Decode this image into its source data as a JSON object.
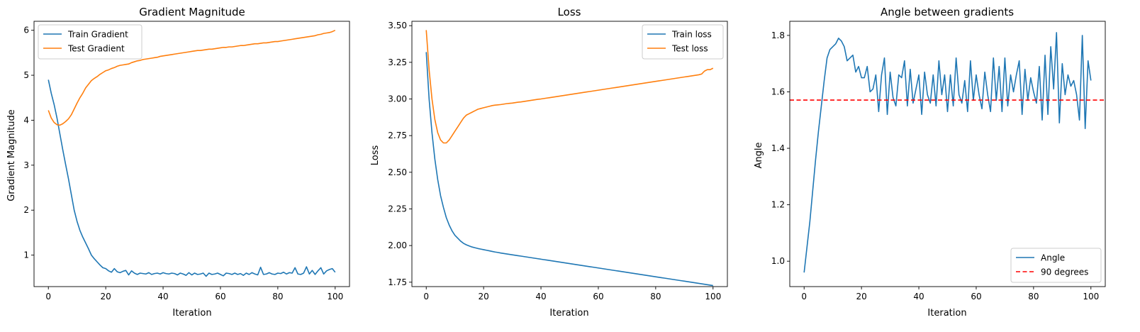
{
  "colors": {
    "train": "#1f77b4",
    "test": "#ff7f0e",
    "reference": "#ff0000"
  },
  "chart_data": [
    {
      "type": "line",
      "title": "Gradient Magnitude",
      "xlabel": "Iteration",
      "ylabel": "Gradient Magnitude",
      "xlim": [
        -5,
        105
      ],
      "ylim": [
        0.3,
        6.2
      ],
      "xticks": [
        0,
        20,
        40,
        60,
        80,
        100
      ],
      "yticks": [
        1,
        2,
        3,
        4,
        5,
        6
      ],
      "grid": false,
      "legend_position": "upper left",
      "series": [
        {
          "name": "Train Gradient",
          "color": "#1f77b4",
          "x": [
            0,
            1,
            2,
            3,
            4,
            5,
            6,
            7,
            8,
            9,
            10,
            11,
            12,
            13,
            14,
            15,
            16,
            17,
            18,
            19,
            20,
            21,
            22,
            23,
            24,
            25,
            26,
            27,
            28,
            29,
            30,
            31,
            32,
            33,
            34,
            35,
            36,
            37,
            38,
            39,
            40,
            41,
            42,
            43,
            44,
            45,
            46,
            47,
            48,
            49,
            50,
            51,
            52,
            53,
            54,
            55,
            56,
            57,
            58,
            59,
            60,
            61,
            62,
            63,
            64,
            65,
            66,
            67,
            68,
            69,
            70,
            71,
            72,
            73,
            74,
            75,
            76,
            77,
            78,
            79,
            80,
            81,
            82,
            83,
            84,
            85,
            86,
            87,
            88,
            89,
            90,
            91,
            92,
            93,
            94,
            95,
            96,
            97,
            98,
            99,
            100
          ],
          "y": [
            4.9,
            4.6,
            4.35,
            4.05,
            3.7,
            3.35,
            3.02,
            2.7,
            2.35,
            2.0,
            1.75,
            1.55,
            1.4,
            1.27,
            1.14,
            1.0,
            0.92,
            0.85,
            0.78,
            0.72,
            0.7,
            0.65,
            0.62,
            0.7,
            0.63,
            0.61,
            0.64,
            0.66,
            0.56,
            0.65,
            0.6,
            0.57,
            0.6,
            0.59,
            0.58,
            0.61,
            0.57,
            0.59,
            0.6,
            0.58,
            0.61,
            0.59,
            0.58,
            0.6,
            0.59,
            0.56,
            0.6,
            0.58,
            0.55,
            0.61,
            0.56,
            0.6,
            0.57,
            0.58,
            0.6,
            0.53,
            0.6,
            0.57,
            0.58,
            0.6,
            0.57,
            0.54,
            0.6,
            0.59,
            0.57,
            0.6,
            0.57,
            0.59,
            0.55,
            0.6,
            0.57,
            0.61,
            0.58,
            0.56,
            0.73,
            0.57,
            0.58,
            0.61,
            0.58,
            0.57,
            0.6,
            0.59,
            0.62,
            0.58,
            0.61,
            0.6,
            0.72,
            0.58,
            0.57,
            0.6,
            0.74,
            0.58,
            0.66,
            0.57,
            0.65,
            0.72,
            0.58,
            0.65,
            0.68,
            0.7,
            0.62
          ]
        },
        {
          "name": "Test Gradient",
          "color": "#ff7f0e",
          "x": [
            0,
            1,
            2,
            3,
            4,
            5,
            6,
            7,
            8,
            9,
            10,
            11,
            12,
            13,
            14,
            15,
            16,
            17,
            18,
            19,
            20,
            21,
            22,
            23,
            24,
            25,
            26,
            27,
            28,
            29,
            30,
            31,
            32,
            33,
            34,
            35,
            36,
            37,
            38,
            39,
            40,
            41,
            42,
            43,
            44,
            45,
            46,
            47,
            48,
            49,
            50,
            51,
            52,
            53,
            54,
            55,
            56,
            57,
            58,
            59,
            60,
            61,
            62,
            63,
            64,
            65,
            66,
            67,
            68,
            69,
            70,
            71,
            72,
            73,
            74,
            75,
            76,
            77,
            78,
            79,
            80,
            81,
            82,
            83,
            84,
            85,
            86,
            87,
            88,
            89,
            90,
            91,
            92,
            93,
            94,
            95,
            96,
            97,
            98,
            99,
            100
          ],
          "y": [
            4.22,
            4.05,
            3.95,
            3.9,
            3.89,
            3.92,
            3.97,
            4.03,
            4.12,
            4.25,
            4.38,
            4.5,
            4.6,
            4.72,
            4.8,
            4.88,
            4.93,
            4.97,
            5.02,
            5.06,
            5.1,
            5.12,
            5.15,
            5.17,
            5.2,
            5.22,
            5.23,
            5.24,
            5.25,
            5.28,
            5.3,
            5.32,
            5.33,
            5.35,
            5.36,
            5.37,
            5.38,
            5.39,
            5.4,
            5.42,
            5.43,
            5.44,
            5.45,
            5.46,
            5.47,
            5.48,
            5.49,
            5.5,
            5.51,
            5.52,
            5.53,
            5.54,
            5.55,
            5.55,
            5.56,
            5.57,
            5.58,
            5.58,
            5.59,
            5.6,
            5.61,
            5.62,
            5.62,
            5.63,
            5.63,
            5.64,
            5.65,
            5.66,
            5.66,
            5.67,
            5.68,
            5.69,
            5.7,
            5.7,
            5.71,
            5.72,
            5.72,
            5.73,
            5.74,
            5.75,
            5.75,
            5.76,
            5.77,
            5.78,
            5.79,
            5.8,
            5.81,
            5.82,
            5.83,
            5.84,
            5.85,
            5.86,
            5.87,
            5.88,
            5.9,
            5.91,
            5.93,
            5.94,
            5.95,
            5.97,
            6.0
          ]
        }
      ]
    },
    {
      "type": "line",
      "title": "Loss",
      "xlabel": "Iteration",
      "ylabel": "Loss",
      "xlim": [
        -5,
        105
      ],
      "ylim": [
        1.72,
        3.53
      ],
      "xticks": [
        0,
        20,
        40,
        60,
        80,
        100
      ],
      "yticks": [
        1.75,
        2.0,
        2.25,
        2.5,
        2.75,
        3.0,
        3.25,
        3.5
      ],
      "ytick_labels": [
        "1.75",
        "2.00",
        "2.25",
        "2.50",
        "2.75",
        "3.00",
        "3.25",
        "3.50"
      ],
      "grid": false,
      "legend_position": "upper right",
      "series": [
        {
          "name": "Train loss",
          "color": "#1f77b4",
          "x": [
            0,
            1,
            2,
            3,
            4,
            5,
            6,
            7,
            8,
            9,
            10,
            11,
            12,
            13,
            14,
            15,
            16,
            17,
            18,
            19,
            20,
            21,
            22,
            23,
            24,
            25,
            26,
            27,
            28,
            29,
            30,
            31,
            32,
            33,
            34,
            35,
            36,
            37,
            38,
            39,
            40,
            41,
            42,
            43,
            44,
            45,
            46,
            47,
            48,
            49,
            50,
            51,
            52,
            53,
            54,
            55,
            56,
            57,
            58,
            59,
            60,
            61,
            62,
            63,
            64,
            65,
            66,
            67,
            68,
            69,
            70,
            71,
            72,
            73,
            74,
            75,
            76,
            77,
            78,
            79,
            80,
            81,
            82,
            83,
            84,
            85,
            86,
            87,
            88,
            89,
            90,
            91,
            92,
            93,
            94,
            95,
            96,
            97,
            98,
            99,
            100
          ],
          "y": [
            3.32,
            3.0,
            2.77,
            2.59,
            2.45,
            2.34,
            2.26,
            2.19,
            2.14,
            2.1,
            2.07,
            2.05,
            2.03,
            2.015,
            2.005,
            1.997,
            1.99,
            1.985,
            1.98,
            1.976,
            1.972,
            1.968,
            1.964,
            1.96,
            1.956,
            1.953,
            1.949,
            1.946,
            1.943,
            1.94,
            1.937,
            1.934,
            1.931,
            1.928,
            1.925,
            1.922,
            1.919,
            1.916,
            1.913,
            1.91,
            1.907,
            1.904,
            1.901,
            1.898,
            1.895,
            1.892,
            1.889,
            1.886,
            1.883,
            1.88,
            1.877,
            1.874,
            1.871,
            1.868,
            1.865,
            1.862,
            1.859,
            1.856,
            1.853,
            1.85,
            1.847,
            1.844,
            1.841,
            1.838,
            1.835,
            1.832,
            1.829,
            1.826,
            1.823,
            1.82,
            1.817,
            1.814,
            1.811,
            1.808,
            1.805,
            1.802,
            1.799,
            1.796,
            1.793,
            1.79,
            1.787,
            1.784,
            1.781,
            1.778,
            1.775,
            1.772,
            1.769,
            1.766,
            1.763,
            1.76,
            1.757,
            1.754,
            1.751,
            1.748,
            1.745,
            1.742,
            1.739,
            1.736,
            1.733,
            1.73,
            1.727
          ]
        },
        {
          "name": "Test loss",
          "color": "#ff7f0e",
          "x": [
            0,
            1,
            2,
            3,
            4,
            5,
            6,
            7,
            8,
            9,
            10,
            11,
            12,
            13,
            14,
            15,
            16,
            17,
            18,
            19,
            20,
            21,
            22,
            23,
            24,
            25,
            26,
            27,
            28,
            29,
            30,
            31,
            32,
            33,
            34,
            35,
            36,
            37,
            38,
            39,
            40,
            41,
            42,
            43,
            44,
            45,
            46,
            47,
            48,
            49,
            50,
            51,
            52,
            53,
            54,
            55,
            56,
            57,
            58,
            59,
            60,
            61,
            62,
            63,
            64,
            65,
            66,
            67,
            68,
            69,
            70,
            71,
            72,
            73,
            74,
            75,
            76,
            77,
            78,
            79,
            80,
            81,
            82,
            83,
            84,
            85,
            86,
            87,
            88,
            89,
            90,
            91,
            92,
            93,
            94,
            95,
            96,
            97,
            98,
            99,
            100
          ],
          "y": [
            3.47,
            3.2,
            3.0,
            2.86,
            2.77,
            2.72,
            2.7,
            2.7,
            2.72,
            2.75,
            2.78,
            2.81,
            2.84,
            2.87,
            2.89,
            2.9,
            2.91,
            2.92,
            2.93,
            2.935,
            2.94,
            2.945,
            2.95,
            2.955,
            2.958,
            2.96,
            2.962,
            2.965,
            2.968,
            2.97,
            2.972,
            2.975,
            2.978,
            2.98,
            2.983,
            2.986,
            2.989,
            2.992,
            2.995,
            2.998,
            3.0,
            3.003,
            3.006,
            3.009,
            3.012,
            3.015,
            3.018,
            3.021,
            3.024,
            3.027,
            3.03,
            3.033,
            3.036,
            3.039,
            3.042,
            3.045,
            3.048,
            3.051,
            3.054,
            3.057,
            3.06,
            3.063,
            3.066,
            3.069,
            3.072,
            3.075,
            3.078,
            3.081,
            3.084,
            3.087,
            3.09,
            3.093,
            3.096,
            3.099,
            3.102,
            3.105,
            3.108,
            3.111,
            3.114,
            3.117,
            3.12,
            3.123,
            3.126,
            3.129,
            3.132,
            3.135,
            3.138,
            3.141,
            3.144,
            3.147,
            3.15,
            3.153,
            3.156,
            3.159,
            3.162,
            3.165,
            3.17,
            3.19,
            3.2,
            3.2,
            3.21
          ]
        }
      ]
    },
    {
      "type": "line",
      "title": "Angle between gradients",
      "xlabel": "Iteration",
      "ylabel": "Angle",
      "xlim": [
        -5,
        105
      ],
      "ylim": [
        0.91,
        1.85
      ],
      "xticks": [
        0,
        20,
        40,
        60,
        80,
        100
      ],
      "yticks": [
        1.0,
        1.2,
        1.4,
        1.6,
        1.8
      ],
      "ytick_labels": [
        "1.0",
        "1.2",
        "1.4",
        "1.6",
        "1.8"
      ],
      "grid": false,
      "legend_position": "lower right",
      "series": [
        {
          "name": "Angle",
          "color": "#1f77b4",
          "x": [
            0,
            1,
            2,
            3,
            4,
            5,
            6,
            7,
            8,
            9,
            10,
            11,
            12,
            13,
            14,
            15,
            16,
            17,
            18,
            19,
            20,
            21,
            22,
            23,
            24,
            25,
            26,
            27,
            28,
            29,
            30,
            31,
            32,
            33,
            34,
            35,
            36,
            37,
            38,
            39,
            40,
            41,
            42,
            43,
            44,
            45,
            46,
            47,
            48,
            49,
            50,
            51,
            52,
            53,
            54,
            55,
            56,
            57,
            58,
            59,
            60,
            61,
            62,
            63,
            64,
            65,
            66,
            67,
            68,
            69,
            70,
            71,
            72,
            73,
            74,
            75,
            76,
            77,
            78,
            79,
            80,
            81,
            82,
            83,
            84,
            85,
            86,
            87,
            88,
            89,
            90,
            91,
            92,
            93,
            94,
            95,
            96,
            97,
            98,
            99,
            100
          ],
          "y": [
            0.96,
            1.05,
            1.14,
            1.25,
            1.36,
            1.46,
            1.55,
            1.64,
            1.72,
            1.75,
            1.76,
            1.77,
            1.79,
            1.78,
            1.76,
            1.71,
            1.72,
            1.73,
            1.67,
            1.69,
            1.65,
            1.65,
            1.69,
            1.6,
            1.61,
            1.66,
            1.53,
            1.66,
            1.72,
            1.52,
            1.67,
            1.58,
            1.55,
            1.66,
            1.65,
            1.71,
            1.55,
            1.68,
            1.56,
            1.61,
            1.66,
            1.52,
            1.67,
            1.59,
            1.56,
            1.66,
            1.55,
            1.71,
            1.59,
            1.66,
            1.53,
            1.66,
            1.55,
            1.72,
            1.59,
            1.56,
            1.64,
            1.53,
            1.71,
            1.57,
            1.66,
            1.59,
            1.54,
            1.67,
            1.59,
            1.53,
            1.72,
            1.57,
            1.69,
            1.53,
            1.72,
            1.55,
            1.66,
            1.6,
            1.66,
            1.71,
            1.52,
            1.68,
            1.57,
            1.65,
            1.6,
            1.56,
            1.69,
            1.5,
            1.73,
            1.52,
            1.76,
            1.61,
            1.81,
            1.49,
            1.7,
            1.59,
            1.66,
            1.62,
            1.64,
            1.59,
            1.5,
            1.8,
            1.47,
            1.71,
            1.64
          ]
        },
        {
          "name": "90 degrees",
          "color": "#ff0000",
          "style": "dashed",
          "hline": 1.5708
        }
      ]
    }
  ]
}
